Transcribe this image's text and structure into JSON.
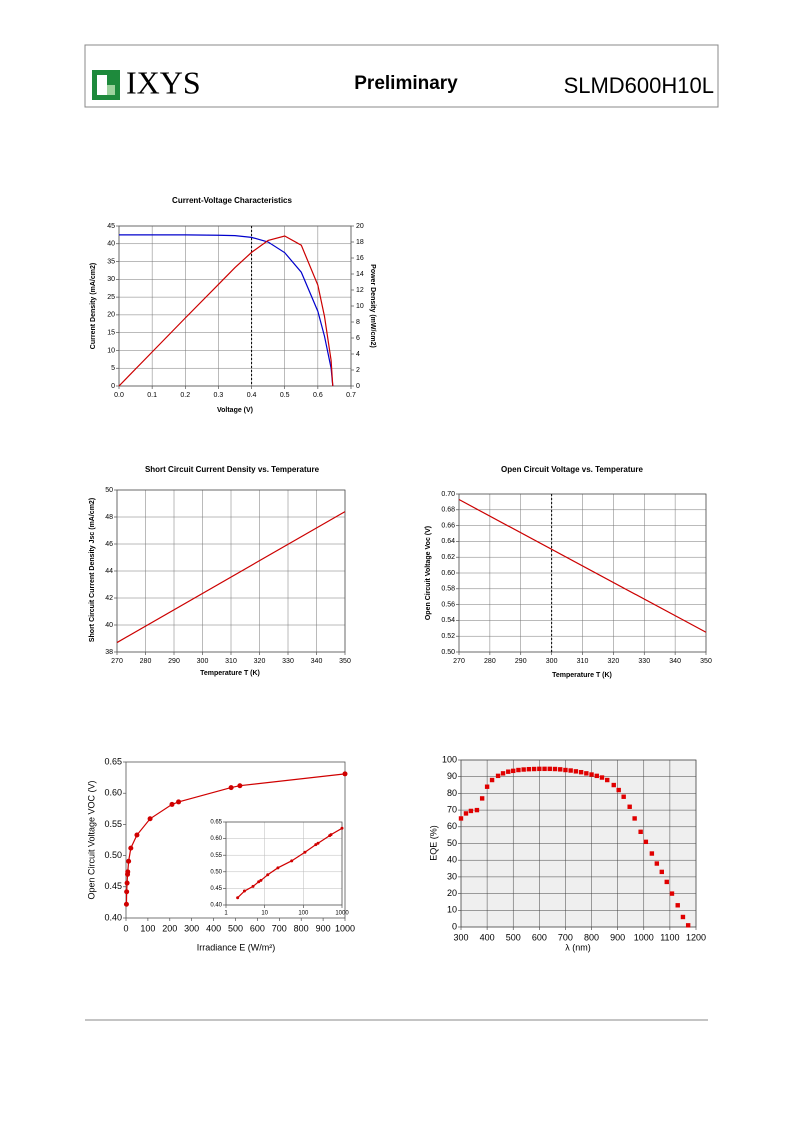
{
  "header": {
    "logo": "IXYS",
    "status": "Preliminary",
    "part": "SLMD600H10L"
  },
  "chart_data": [
    {
      "type": "line",
      "title": "Current-Voltage Characteristics",
      "x_label": "Voltage (V)",
      "y_label": "Current Density (mA/cm2)",
      "y2_label": "Power Density (mW/cm2)",
      "x": [
        0,
        0.1,
        0.2,
        0.3,
        0.35,
        0.4,
        0.45,
        0.5,
        0.55,
        0.6,
        0.62,
        0.64,
        0.645
      ],
      "series": [
        {
          "color": "#0000cc",
          "values": [
            42.5,
            42.5,
            42.5,
            42.4,
            42.3,
            41.8,
            40.5,
            37.5,
            32,
            21,
            14,
            5,
            0
          ]
        },
        {
          "color": "#cc0000",
          "axis": "y2",
          "values": [
            0,
            4.25,
            8.5,
            12.7,
            14.8,
            16.7,
            18.2,
            18.75,
            17.6,
            12.6,
            8.7,
            3.2,
            0
          ]
        }
      ],
      "xlim": [
        0,
        0.7
      ],
      "xticks": [
        {
          "value": 0,
          "label": "0.0"
        },
        0.1,
        0.2,
        0.3,
        0.4,
        0.5,
        0.6,
        0.7
      ],
      "ylim": [
        0,
        45
      ],
      "yticks": [
        0,
        5,
        10,
        15,
        20,
        25,
        30,
        35,
        40,
        45
      ],
      "y2lim": [
        0,
        20
      ],
      "y2ticks": [
        0,
        2,
        4,
        6,
        8,
        10,
        12,
        14,
        16,
        18,
        20
      ],
      "grid": true,
      "vline": 0.4
    },
    {
      "type": "line",
      "title": "Short Circuit Current Density vs. Temperature",
      "x_label": "Temperature T (K)",
      "y_label": "Short Circuit Current Density Jsc (mA/cm2)",
      "x": [
        270,
        350
      ],
      "series": [
        {
          "color": "#cc0000",
          "values": [
            38.7,
            48.4
          ]
        }
      ],
      "xlim": [
        270,
        350
      ],
      "xticks": [
        270,
        280,
        290,
        300,
        310,
        320,
        330,
        340,
        350
      ],
      "ylim": [
        38,
        50
      ],
      "yticks": [
        38,
        40,
        42,
        44,
        46,
        48,
        50
      ],
      "grid": true
    },
    {
      "type": "line",
      "title": "Open Circuit Voltage vs. Temperature",
      "x_label": "Temperature T (K)",
      "y_label": "Open Circuit Voltage Voc (V)",
      "x": [
        270,
        350
      ],
      "series": [
        {
          "color": "#cc0000",
          "values": [
            0.693,
            0.525
          ]
        }
      ],
      "xlim": [
        270,
        350
      ],
      "xticks": [
        270,
        280,
        290,
        300,
        310,
        320,
        330,
        340,
        350
      ],
      "ylim": [
        0.5,
        0.7
      ],
      "yticks": [
        {
          "value": 0.5,
          "label": "0.50"
        },
        0.52,
        0.54,
        0.56,
        0.58,
        {
          "value": 0.6,
          "label": "0.60"
        },
        0.62,
        0.64,
        0.66,
        0.68,
        {
          "value": 0.7,
          "label": "0.70"
        }
      ],
      "grid": true,
      "vline": 300
    },
    {
      "type": "scatter",
      "x_label": "Irradiance E (W/m²)",
      "y_label": "Open Circuit Voltage VOC (V)",
      "fit_line": true,
      "marker": "circle",
      "x": [
        2,
        3,
        5,
        7,
        8,
        12,
        22,
        50,
        110,
        210,
        240,
        480,
        520,
        1000
      ],
      "series": [
        {
          "color": "#d00000",
          "values": [
            0.422,
            0.442,
            0.456,
            0.47,
            0.474,
            0.491,
            0.512,
            0.533,
            0.559,
            0.582,
            0.586,
            0.609,
            0.612,
            0.631
          ]
        }
      ],
      "xlim": [
        0,
        1000
      ],
      "xticks": [
        0,
        100,
        200,
        300,
        400,
        500,
        600,
        700,
        800,
        900,
        1000
      ],
      "ylim": [
        0.4,
        0.65
      ],
      "yticks": [
        {
          "value": 0.4,
          "label": "0.40"
        },
        0.45,
        {
          "value": 0.5,
          "label": "0.50"
        },
        0.55,
        {
          "value": 0.6,
          "label": "0.60"
        },
        0.65
      ],
      "grid": false,
      "inset": {
        "log_x": true,
        "xlim": [
          1,
          1000
        ],
        "xticks": [
          1,
          10,
          100,
          1000
        ],
        "ylim": [
          0.4,
          0.65
        ],
        "yticks": [
          {
            "value": 0.4,
            "label": "0.40"
          },
          0.45,
          {
            "value": 0.5,
            "label": "0.50"
          },
          0.55,
          {
            "value": 0.6,
            "label": "0.60"
          },
          0.65
        ],
        "grid": true
      }
    },
    {
      "type": "scatter",
      "x_label": "λ (nm)",
      "y_label": "EQE (%)",
      "marker": "square",
      "x": [
        300,
        319,
        338,
        361,
        381,
        400,
        419,
        442,
        461,
        481,
        500,
        520,
        540,
        560,
        580,
        600,
        620,
        640,
        660,
        680,
        700,
        720,
        740,
        760,
        780,
        800,
        820,
        840,
        860,
        885,
        904,
        923,
        946,
        965,
        988,
        1008,
        1031,
        1050,
        1069,
        1088,
        1108,
        1130,
        1150,
        1170
      ],
      "series": [
        {
          "color": "#e00000",
          "values": [
            65,
            68,
            69.5,
            70,
            77,
            84,
            88,
            90.5,
            92,
            93,
            93.5,
            94,
            94.3,
            94.5,
            94.6,
            94.7,
            94.7,
            94.7,
            94.6,
            94.4,
            94,
            93.7,
            93.2,
            92.7,
            92,
            91.3,
            90.5,
            89.5,
            88,
            85,
            82,
            78,
            72,
            65,
            57,
            51,
            44,
            38,
            33,
            27,
            20,
            13,
            6,
            1
          ]
        }
      ],
      "xlim": [
        300,
        1200
      ],
      "xticks": [
        300,
        400,
        500,
        600,
        700,
        800,
        900,
        1000,
        1100,
        1200
      ],
      "ylim": [
        0,
        100
      ],
      "yticks": [
        0,
        10,
        20,
        30,
        40,
        50,
        60,
        70,
        80,
        90,
        100
      ],
      "grid": true
    }
  ]
}
